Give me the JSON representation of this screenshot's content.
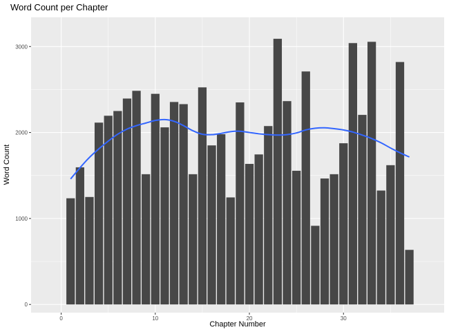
{
  "chart_data": {
    "type": "bar",
    "title": "Word Count per Chapter",
    "xlabel": "Chapter Number",
    "ylabel": "Word Count",
    "x": [
      1,
      2,
      3,
      4,
      5,
      6,
      7,
      8,
      9,
      10,
      11,
      12,
      13,
      14,
      15,
      16,
      17,
      18,
      19,
      20,
      21,
      22,
      23,
      24,
      25,
      26,
      27,
      28,
      29,
      30,
      31,
      32,
      33,
      34,
      35,
      36,
      37
    ],
    "values": [
      1235,
      1595,
      1250,
      2115,
      2195,
      2250,
      2395,
      2485,
      1515,
      2450,
      2060,
      2355,
      2330,
      1515,
      2525,
      1850,
      1980,
      1245,
      2350,
      1635,
      1745,
      2075,
      3090,
      2365,
      1555,
      2710,
      915,
      1465,
      1515,
      1875,
      3040,
      2205,
      3055,
      1325,
      1620,
      2820,
      635
    ],
    "xlim": [
      -3.2,
      40.7
    ],
    "ylim": [
      -95,
      3340
    ],
    "xticks": [
      0,
      10,
      20,
      30
    ],
    "yticks": [
      0,
      1000,
      2000,
      3000
    ],
    "grid": true,
    "smooth": {
      "x": [
        1,
        2,
        3,
        4,
        5,
        6,
        7,
        8,
        9,
        10,
        11,
        12,
        13,
        14,
        15,
        16,
        17,
        18,
        19,
        20,
        21,
        22,
        23,
        24,
        25,
        26,
        27,
        28,
        29,
        30,
        31,
        32,
        33,
        34,
        35,
        36,
        37
      ],
      "values": [
        1460,
        1590,
        1710,
        1810,
        1900,
        1980,
        2040,
        2080,
        2110,
        2140,
        2150,
        2130,
        2080,
        2020,
        1980,
        1975,
        1990,
        2010,
        2015,
        2000,
        1985,
        1975,
        1970,
        1975,
        1995,
        2030,
        2050,
        2055,
        2045,
        2030,
        2005,
        1970,
        1930,
        1880,
        1820,
        1765,
        1715
      ]
    },
    "colors": {
      "bar": "#474747",
      "panel": "#ebebeb",
      "grid": "#ffffff",
      "smooth": "#3366ff"
    }
  }
}
